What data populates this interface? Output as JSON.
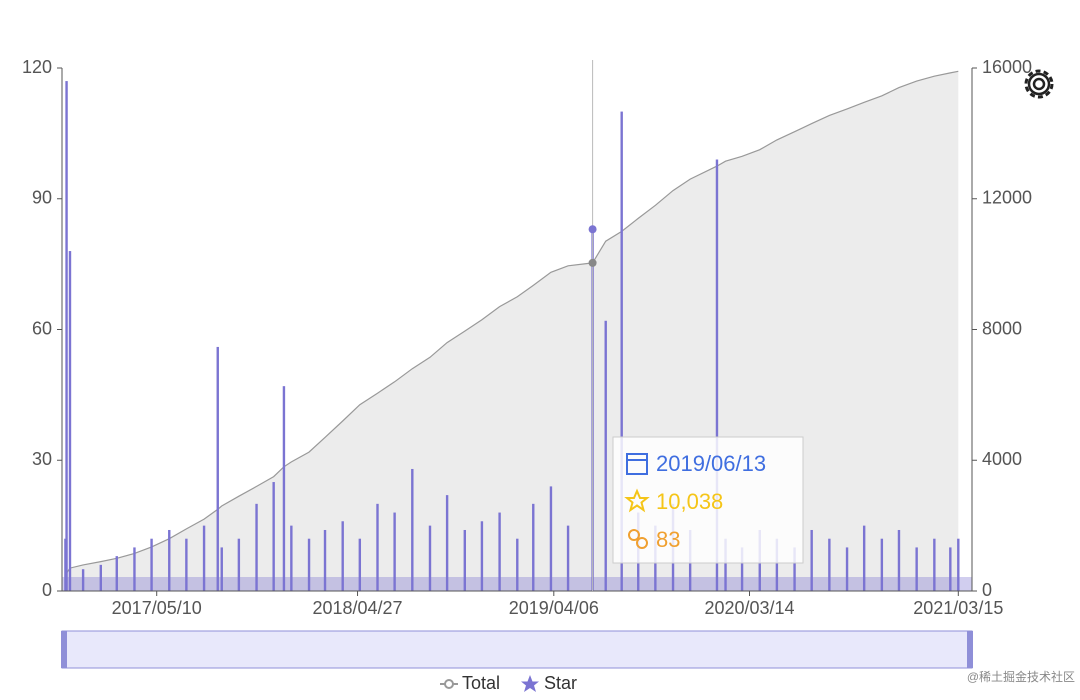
{
  "chart_data": {
    "type": "bar-area",
    "x": [
      "2016/12/01",
      "2016/12/03",
      "2016/12/09",
      "2017/01/01",
      "2017/02/01",
      "2017/03/01",
      "2017/04/01",
      "2017/05/01",
      "2017/06/01",
      "2017/07/01",
      "2017/08/01",
      "2017/08/25",
      "2017/09/01",
      "2017/10/01",
      "2017/11/01",
      "2017/12/01",
      "2017/12/19",
      "2018/01/01",
      "2018/02/01",
      "2018/03/01",
      "2018/04/01",
      "2018/05/01",
      "2018/06/01",
      "2018/07/01",
      "2018/08/01",
      "2018/09/01",
      "2018/10/01",
      "2018/11/01",
      "2018/12/01",
      "2019/01/01",
      "2019/02/01",
      "2019/03/01",
      "2019/04/01",
      "2019/05/01",
      "2019/06/13",
      "2019/07/06",
      "2019/08/03",
      "2019/09/01",
      "2019/10/01",
      "2019/11/01",
      "2019/12/01",
      "2020/01/17",
      "2020/02/01",
      "2020/03/01",
      "2020/04/01",
      "2020/05/01",
      "2020/06/01",
      "2020/07/01",
      "2020/08/01",
      "2020/09/01",
      "2020/10/01",
      "2020/11/01",
      "2020/12/01",
      "2021/01/01",
      "2021/02/01",
      "2021/03/01",
      "2021/03/15"
    ],
    "series": [
      {
        "name": "Total",
        "color": "#999999",
        "area_color": "#ececec",
        "axis": "y2",
        "values": [
          200,
          550,
          700,
          800,
          900,
          1000,
          1150,
          1350,
          1600,
          1900,
          2200,
          2500,
          2600,
          2900,
          3200,
          3500,
          3800,
          3950,
          4250,
          4700,
          5200,
          5700,
          6050,
          6400,
          6800,
          7150,
          7600,
          7950,
          8300,
          8700,
          9000,
          9350,
          9750,
          9950,
          10038,
          10700,
          11000,
          11400,
          11800,
          12250,
          12600,
          13000,
          13150,
          13300,
          13500,
          13800,
          14050,
          14300,
          14550,
          14750,
          14950,
          15150,
          15400,
          15600,
          15750,
          15850,
          15900
        ]
      },
      {
        "name": "Star",
        "color": "#7b74d2",
        "values": [
          12,
          117,
          78,
          5,
          6,
          8,
          10,
          12,
          14,
          12,
          15,
          56,
          10,
          12,
          20,
          25,
          47,
          15,
          12,
          14,
          16,
          12,
          20,
          18,
          28,
          15,
          22,
          14,
          16,
          18,
          12,
          20,
          24,
          15,
          83,
          62,
          110,
          18,
          15,
          20,
          14,
          99,
          12,
          10,
          14,
          12,
          10,
          14,
          12,
          10,
          15,
          12,
          14,
          10,
          12,
          10,
          12
        ]
      }
    ],
    "xlim": [
      "2016/11/25",
      "2021/04/08"
    ],
    "xticks": [
      "2017/05/10",
      "2018/04/27",
      "2019/04/06",
      "2020/03/14",
      "2021/03/15"
    ],
    "ylim": [
      0,
      120
    ],
    "yticks": [
      0,
      30,
      60,
      90,
      120
    ],
    "y2lim": [
      0,
      16000
    ],
    "y2ticks": [
      0,
      4000,
      8000,
      12000,
      16000
    ],
    "tooltip": {
      "date": "2019/06/13",
      "total": "10,038",
      "star": 83
    },
    "watermark": "@稀土掘金技术社区"
  }
}
